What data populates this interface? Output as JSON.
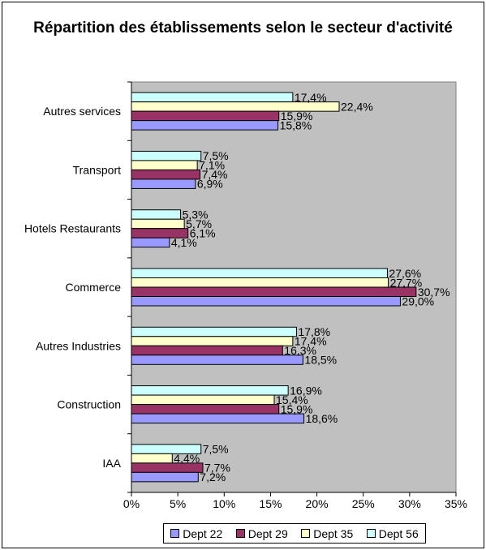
{
  "chart_data": {
    "type": "bar",
    "orientation": "horizontal",
    "title": "Répartition des établissements selon le secteur d'activité",
    "categories": [
      "Autres services",
      "Transport",
      "Hotels Restaurants",
      "Commerce",
      "Autres Industries",
      "Construction",
      "IAA"
    ],
    "series": [
      {
        "name": "Dept 22",
        "color": "#9999ff",
        "values": [
          15.8,
          6.9,
          4.1,
          29.0,
          18.5,
          18.6,
          7.2
        ],
        "labels": [
          "15,8%",
          "6,9%",
          "4,1%",
          "29,0%",
          "18,5%",
          "18,6%",
          "7,2%"
        ]
      },
      {
        "name": "Dept 29",
        "color": "#993366",
        "values": [
          15.9,
          7.4,
          6.1,
          30.7,
          16.3,
          15.9,
          7.7
        ],
        "labels": [
          "15,9%",
          "7,4%",
          "6,1%",
          "30,7%",
          "16,3%",
          "15,9%",
          "7,7%"
        ]
      },
      {
        "name": "Dept 35",
        "color": "#ffffcc",
        "values": [
          22.4,
          7.1,
          5.7,
          27.7,
          17.4,
          15.4,
          4.4
        ],
        "labels": [
          "22,4%",
          "7,1%",
          "5,7%",
          "27,7%",
          "17,4%",
          "15,4%",
          "4,4%"
        ]
      },
      {
        "name": "Dept 56",
        "color": "#ccffff",
        "values": [
          17.4,
          7.5,
          5.3,
          27.6,
          17.8,
          16.9,
          7.5
        ],
        "labels": [
          "17,4%",
          "7,5%",
          "5,3%",
          "27,6%",
          "17,8%",
          "16,9%",
          "7,5%"
        ]
      }
    ],
    "xlim": [
      0,
      35
    ],
    "xticks": [
      0,
      5,
      10,
      15,
      20,
      25,
      30,
      35
    ],
    "xtick_labels": [
      "0%",
      "5%",
      "10%",
      "15%",
      "20%",
      "25%",
      "30%",
      "35%"
    ],
    "plot_background": "#c0c0c0",
    "grid": false,
    "legend_position": "bottom"
  }
}
